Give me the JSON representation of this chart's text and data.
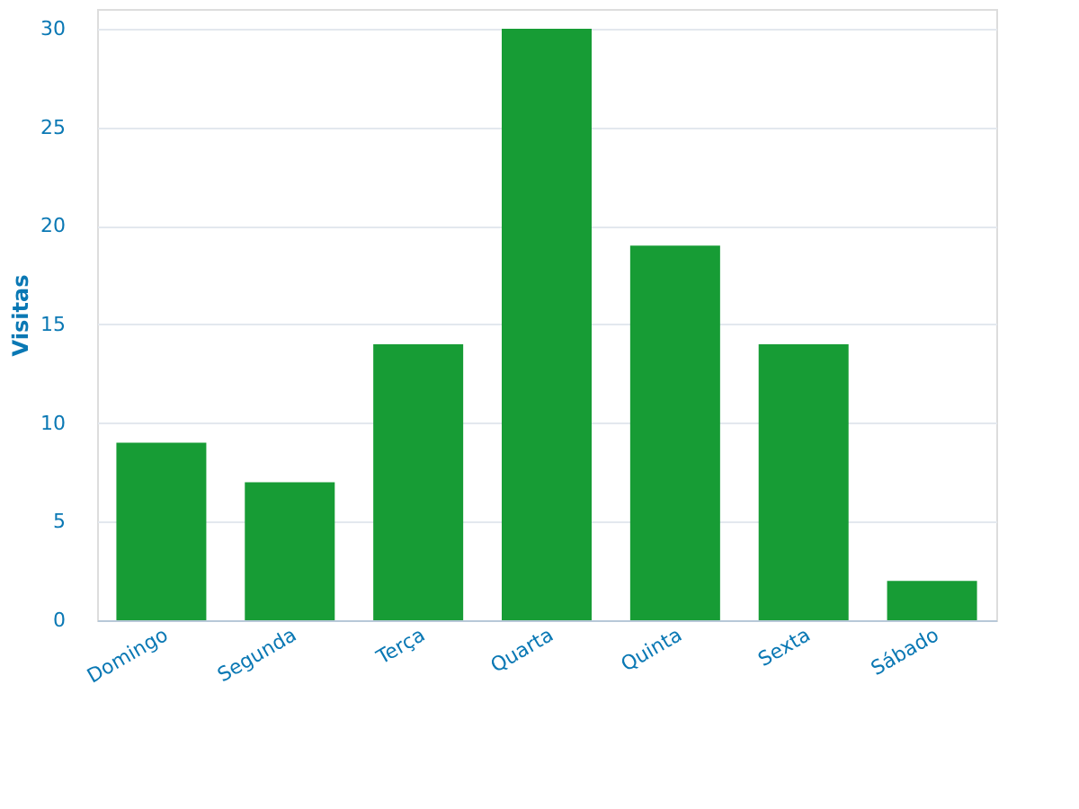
{
  "chart_data": {
    "type": "bar",
    "ylabel": "Visitas",
    "categories": [
      "Domingo",
      "Segunda",
      "Terça",
      "Quarta",
      "Quinta",
      "Sexta",
      "Sábado"
    ],
    "values": [
      9,
      7,
      14,
      30,
      19,
      14,
      2
    ],
    "color": "#179c35",
    "ylim": [
      0,
      31
    ],
    "yticks": [
      0,
      5,
      10,
      15,
      20,
      25,
      30
    ],
    "grid": "y"
  }
}
